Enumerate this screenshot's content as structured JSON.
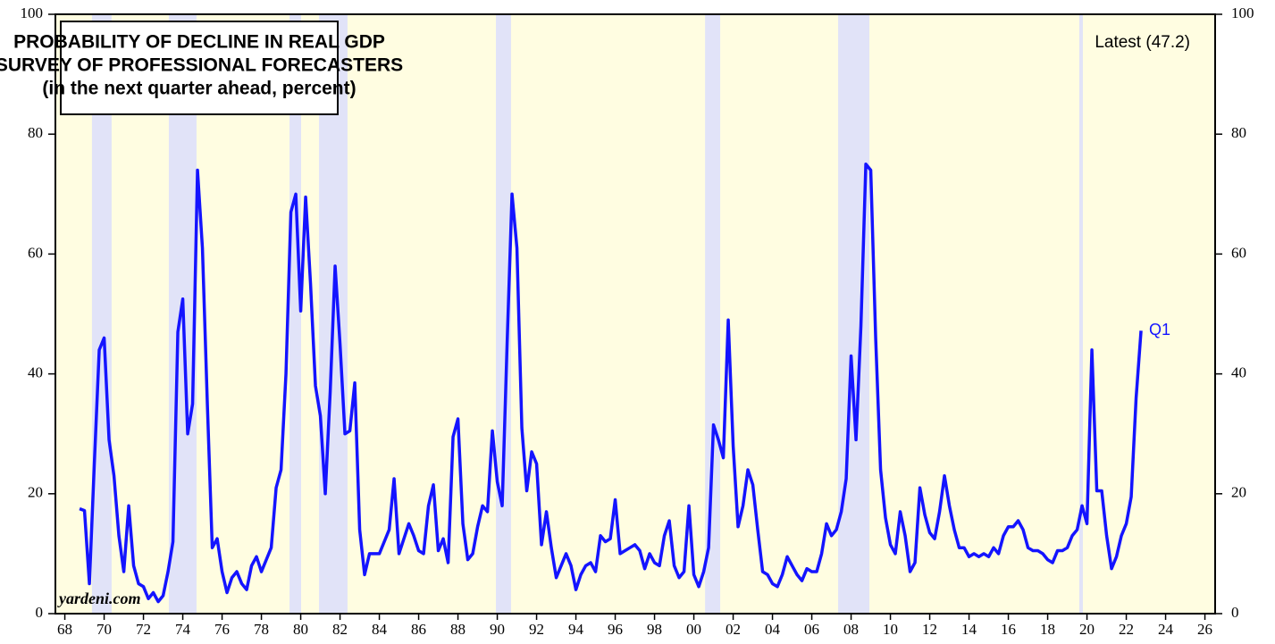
{
  "chart_data": {
    "type": "line",
    "title_lines": [
      "PROBABILITY OF DECLINE IN REAL GDP",
      "SURVEY OF PROFESSIONAL FORECASTERS",
      "(in the next quarter ahead, percent)"
    ],
    "annotations": [
      "Latest (47.2)",
      "Q1"
    ],
    "source": "yardeni.com",
    "background": "#fffde1",
    "shade_color": "#e1e3f8",
    "shaded_periods": [
      [
        1969.38,
        1970.38
      ],
      [
        1973.29,
        1974.7
      ],
      [
        1979.43,
        1980.02
      ],
      [
        1980.93,
        1982.38
      ],
      [
        1989.93,
        1990.7
      ],
      [
        2000.57,
        2001.34
      ],
      [
        2007.34,
        2008.93
      ],
      [
        2019.61,
        2019.79
      ]
    ],
    "xlim": [
      1967.52,
      2026.52
    ],
    "xticks": [
      {
        "value": 1968,
        "label": "68"
      },
      {
        "value": 1970,
        "label": "70"
      },
      {
        "value": 1972,
        "label": "72"
      },
      {
        "value": 1974,
        "label": "74"
      },
      {
        "value": 1976,
        "label": "76"
      },
      {
        "value": 1978,
        "label": "78"
      },
      {
        "value": 1980,
        "label": "80"
      },
      {
        "value": 1982,
        "label": "82"
      },
      {
        "value": 1984,
        "label": "84"
      },
      {
        "value": 1986,
        "label": "86"
      },
      {
        "value": 1988,
        "label": "88"
      },
      {
        "value": 1990,
        "label": "90"
      },
      {
        "value": 1992,
        "label": "92"
      },
      {
        "value": 1994,
        "label": "94"
      },
      {
        "value": 1996,
        "label": "96"
      },
      {
        "value": 1998,
        "label": "98"
      },
      {
        "value": 2000,
        "label": "00"
      },
      {
        "value": 2002,
        "label": "02"
      },
      {
        "value": 2004,
        "label": "04"
      },
      {
        "value": 2006,
        "label": "06"
      },
      {
        "value": 2008,
        "label": "08"
      },
      {
        "value": 2010,
        "label": "10"
      },
      {
        "value": 2012,
        "label": "12"
      },
      {
        "value": 2014,
        "label": "14"
      },
      {
        "value": 2016,
        "label": "16"
      },
      {
        "value": 2018,
        "label": "18"
      },
      {
        "value": 2020,
        "label": "20"
      },
      {
        "value": 2022,
        "label": "22"
      },
      {
        "value": 2024,
        "label": "24"
      },
      {
        "value": 2026,
        "label": "26"
      }
    ],
    "ylim": [
      0,
      100
    ],
    "yticks": [
      0,
      20,
      40,
      60,
      80,
      100
    ],
    "y2lim": [
      0,
      100
    ],
    "y2ticks": [
      0,
      20,
      40,
      60,
      80,
      100
    ],
    "x": [
      1968.75,
      1969,
      1969.25,
      1969.5,
      1969.75,
      1970,
      1970.25,
      1970.5,
      1970.75,
      1971,
      1971.25,
      1971.5,
      1971.75,
      1972,
      1972.25,
      1972.5,
      1972.75,
      1973,
      1973.25,
      1973.5,
      1973.75,
      1974,
      1974.25,
      1974.5,
      1974.75,
      1975,
      1975.25,
      1975.5,
      1975.75,
      1976,
      1976.25,
      1976.5,
      1976.75,
      1977,
      1977.25,
      1977.5,
      1977.75,
      1978,
      1978.25,
      1978.5,
      1978.75,
      1979,
      1979.25,
      1979.5,
      1979.75,
      1980,
      1980.25,
      1980.5,
      1980.75,
      1981,
      1981.25,
      1981.5,
      1981.75,
      1982,
      1982.25,
      1982.5,
      1982.75,
      1983,
      1983.25,
      1983.5,
      1983.75,
      1984,
      1984.25,
      1984.5,
      1984.75,
      1985,
      1985.25,
      1985.5,
      1985.75,
      1986,
      1986.25,
      1986.5,
      1986.75,
      1987,
      1987.25,
      1987.5,
      1987.75,
      1988,
      1988.25,
      1988.5,
      1988.75,
      1989,
      1989.25,
      1989.5,
      1989.75,
      1990,
      1990.25,
      1990.5,
      1990.75,
      1991,
      1991.25,
      1991.5,
      1991.75,
      1992,
      1992.25,
      1992.5,
      1992.75,
      1993,
      1993.25,
      1993.5,
      1993.75,
      1994,
      1994.25,
      1994.5,
      1994.75,
      1995,
      1995.25,
      1995.5,
      1995.75,
      1996,
      1996.25,
      1996.5,
      1996.75,
      1997,
      1997.25,
      1997.5,
      1997.75,
      1998,
      1998.25,
      1998.5,
      1998.75,
      1999,
      1999.25,
      1999.5,
      1999.75,
      2000,
      2000.25,
      2000.5,
      2000.75,
      2001,
      2001.25,
      2001.5,
      2001.75,
      2002,
      2002.25,
      2002.5,
      2002.75,
      2003,
      2003.25,
      2003.5,
      2003.75,
      2004,
      2004.25,
      2004.5,
      2004.75,
      2005,
      2005.25,
      2005.5,
      2005.75,
      2006,
      2006.25,
      2006.5,
      2006.75,
      2007,
      2007.25,
      2007.5,
      2007.75,
      2008,
      2008.25,
      2008.5,
      2008.75,
      2009,
      2009.25,
      2009.5,
      2009.75,
      2010,
      2010.25,
      2010.5,
      2010.75,
      2011,
      2011.25,
      2011.5,
      2011.75,
      2012,
      2012.25,
      2012.5,
      2012.75,
      2013,
      2013.25,
      2013.5,
      2013.75,
      2014,
      2014.25,
      2014.5,
      2014.75,
      2015,
      2015.25,
      2015.5,
      2015.75,
      2016,
      2016.25,
      2016.5,
      2016.75,
      2017,
      2017.25,
      2017.5,
      2017.75,
      2018,
      2018.25,
      2018.5,
      2018.75,
      2019,
      2019.25,
      2019.5,
      2019.75,
      2020,
      2020.25,
      2020.5,
      2020.75,
      2021,
      2021.25,
      2021.5,
      2021.75,
      2022,
      2022.25,
      2022.5,
      2022.75
    ],
    "series": [
      {
        "color": "#1414ff",
        "values": [
          17.5,
          17.2,
          5,
          25,
          44,
          46,
          29,
          23,
          13,
          7,
          18,
          8,
          5,
          4.5,
          2.5,
          3.5,
          2,
          3,
          7,
          12,
          47,
          52.5,
          30,
          35,
          74,
          61,
          35,
          11,
          12.5,
          7,
          3.5,
          6,
          7,
          5,
          4,
          8,
          9.5,
          7,
          9,
          11,
          21,
          24,
          40,
          67,
          70,
          50.5,
          69.5,
          55,
          38,
          33,
          20,
          37,
          58,
          45,
          30,
          30.5,
          38.5,
          14,
          6.5,
          10,
          10,
          10,
          12,
          14,
          22.5,
          10,
          12.5,
          15,
          13,
          10.5,
          10,
          18,
          21.5,
          10.5,
          12.5,
          8.5,
          29.5,
          32.5,
          15,
          9,
          10,
          14.5,
          18,
          17,
          30.5,
          22,
          18,
          45,
          70,
          61,
          31,
          20.5,
          27,
          25,
          11.5,
          17,
          11,
          6,
          8,
          10,
          8,
          4,
          6.5,
          8,
          8.5,
          7,
          13,
          12,
          12.5,
          19,
          10,
          10.5,
          11,
          11.5,
          10.5,
          7.5,
          10,
          8.5,
          8,
          13,
          15.5,
          8,
          6,
          7,
          18,
          6.5,
          4.5,
          7,
          11,
          31.5,
          29,
          26,
          49,
          28,
          14.5,
          18,
          24,
          21.5,
          14,
          7,
          6.5,
          5,
          4.5,
          6.5,
          9.5,
          8,
          6.5,
          5.5,
          7.5,
          7,
          7,
          10,
          15,
          13,
          14,
          17,
          22.5,
          43,
          29,
          48,
          75,
          74,
          46,
          24,
          16,
          11.5,
          10,
          17,
          13,
          7,
          8.5,
          21,
          16.5,
          13.5,
          12.5,
          17,
          23,
          18,
          14,
          11,
          11,
          9.5,
          10,
          9.5,
          10,
          9.5,
          11,
          10,
          13,
          14.5,
          14.5,
          15.5,
          14,
          11,
          10.5,
          10.5,
          10,
          9,
          8.5,
          10.5,
          10.5,
          11,
          13,
          14,
          18,
          15,
          44,
          20.5,
          20.5,
          13,
          7.5,
          9.5,
          13,
          15,
          19.5,
          36,
          47.2
        ]
      }
    ]
  }
}
